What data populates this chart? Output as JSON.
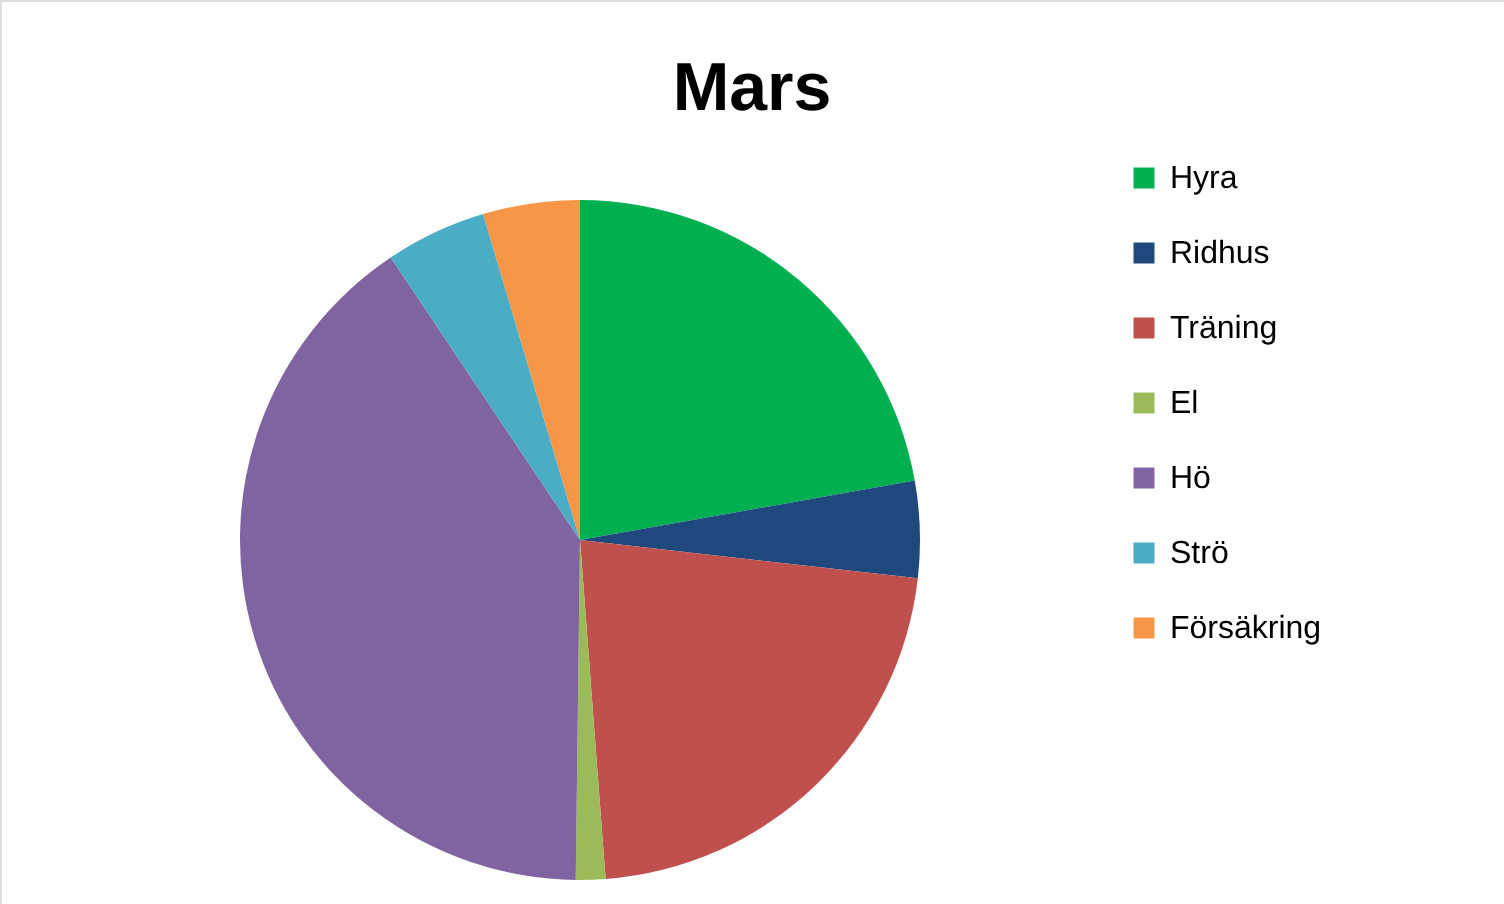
{
  "chart_data": {
    "type": "pie",
    "title": "Mars",
    "categories": [
      "Hyra",
      "Ridhus",
      "Träning",
      "El",
      "Hö",
      "Strö",
      "Försäkring"
    ],
    "values": [
      22.2,
      4.6,
      22.0,
      1.4,
      40.4,
      4.8,
      4.6
    ],
    "colors": [
      "#00b050",
      "#1f497d",
      "#c0504d",
      "#9bbb59",
      "#8064a2",
      "#4bacc6",
      "#f79646"
    ],
    "legend": "right"
  }
}
